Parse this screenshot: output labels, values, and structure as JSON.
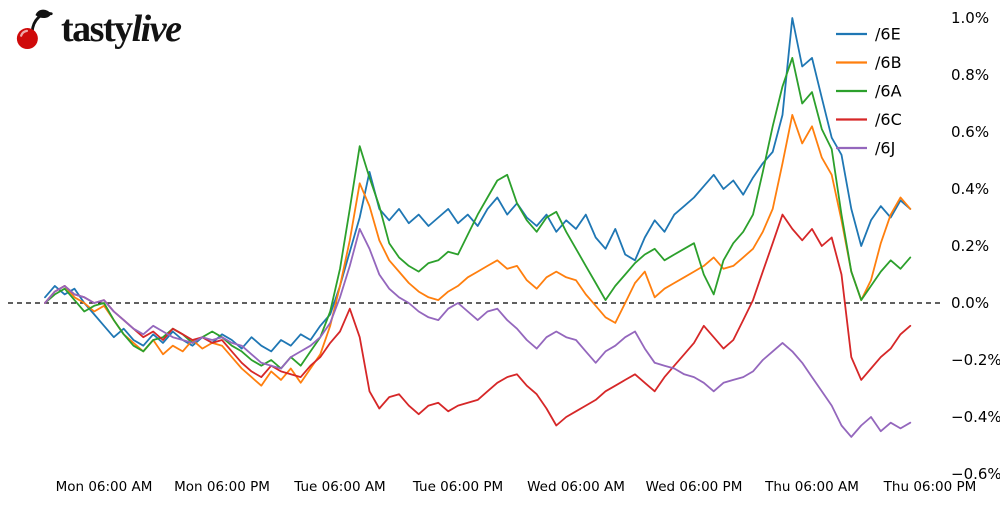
{
  "logo": {
    "brand_first": "tasty",
    "brand_second": "live",
    "cherry_color": "#cf0a0a"
  },
  "chart_data": {
    "type": "line",
    "title": "",
    "xlabel": "",
    "ylabel": "",
    "background": "#ffffff",
    "grid": false,
    "zero_line_dashed": true,
    "legend_position": "upper right",
    "x_unit": "hours since Mon 00:00",
    "x_start_hour": 0,
    "x_step_hours": 1,
    "x_axis_hours": [
      0,
      90
    ],
    "ylim": [
      -0.6,
      1.0
    ],
    "x_ticks": {
      "hours": [
        6,
        18,
        30,
        42,
        54,
        66,
        78,
        90
      ],
      "labels": [
        "Mon 06:00 AM",
        "Mon 06:00 PM",
        "Tue 06:00 AM",
        "Tue 06:00 PM",
        "Wed 06:00 AM",
        "Wed 06:00 PM",
        "Thu 06:00 AM",
        "Thu 06:00 PM"
      ]
    },
    "y_ticks": {
      "values": [
        1.0,
        0.8,
        0.6,
        0.4,
        0.2,
        0.0,
        -0.2,
        -0.4,
        -0.6
      ],
      "labels": [
        "1.0%",
        "0.8%",
        "0.6%",
        "0.4%",
        "0.2%",
        "0.0%",
        "−0.2%",
        "−0.4%",
        "−0.6%"
      ]
    },
    "series": [
      {
        "name": "/6E",
        "color": "#1f77b4",
        "values": [
          0.02,
          0.06,
          0.03,
          0.05,
          0.0,
          -0.04,
          -0.08,
          -0.12,
          -0.09,
          -0.13,
          -0.15,
          -0.11,
          -0.14,
          -0.1,
          -0.13,
          -0.15,
          -0.12,
          -0.14,
          -0.11,
          -0.13,
          -0.16,
          -0.12,
          -0.15,
          -0.17,
          -0.13,
          -0.15,
          -0.11,
          -0.13,
          -0.08,
          -0.04,
          0.06,
          0.18,
          0.3,
          0.46,
          0.33,
          0.29,
          0.33,
          0.28,
          0.31,
          0.27,
          0.3,
          0.33,
          0.28,
          0.31,
          0.27,
          0.33,
          0.37,
          0.31,
          0.35,
          0.3,
          0.27,
          0.31,
          0.25,
          0.29,
          0.26,
          0.31,
          0.23,
          0.19,
          0.26,
          0.17,
          0.15,
          0.23,
          0.29,
          0.25,
          0.31,
          0.34,
          0.37,
          0.41,
          0.45,
          0.4,
          0.43,
          0.38,
          0.44,
          0.49,
          0.53,
          0.66,
          1.0,
          0.83,
          0.86,
          0.72,
          0.58,
          0.52,
          0.33,
          0.2,
          0.29,
          0.34,
          0.3,
          0.36,
          0.33
        ]
      },
      {
        "name": "/6B",
        "color": "#ff7f0e",
        "values": [
          0.0,
          0.04,
          0.06,
          0.02,
          0.0,
          -0.03,
          -0.01,
          -0.06,
          -0.11,
          -0.14,
          -0.17,
          -0.13,
          -0.18,
          -0.15,
          -0.17,
          -0.13,
          -0.16,
          -0.14,
          -0.15,
          -0.19,
          -0.23,
          -0.26,
          -0.29,
          -0.24,
          -0.27,
          -0.23,
          -0.28,
          -0.23,
          -0.18,
          -0.08,
          0.06,
          0.22,
          0.42,
          0.34,
          0.22,
          0.15,
          0.11,
          0.07,
          0.04,
          0.02,
          0.01,
          0.04,
          0.06,
          0.09,
          0.11,
          0.13,
          0.15,
          0.12,
          0.13,
          0.08,
          0.05,
          0.09,
          0.11,
          0.09,
          0.08,
          0.03,
          -0.01,
          -0.05,
          -0.07,
          0.0,
          0.07,
          0.11,
          0.02,
          0.05,
          0.07,
          0.09,
          0.11,
          0.13,
          0.16,
          0.12,
          0.13,
          0.16,
          0.19,
          0.25,
          0.33,
          0.49,
          0.66,
          0.56,
          0.62,
          0.51,
          0.45,
          0.29,
          0.11,
          0.01,
          0.08,
          0.21,
          0.31,
          0.37,
          0.33
        ]
      },
      {
        "name": "/6A",
        "color": "#2ca02c",
        "values": [
          0.0,
          0.03,
          0.05,
          0.01,
          -0.03,
          -0.01,
          0.0,
          -0.06,
          -0.11,
          -0.15,
          -0.17,
          -0.13,
          -0.12,
          -0.09,
          -0.11,
          -0.14,
          -0.12,
          -0.1,
          -0.12,
          -0.15,
          -0.17,
          -0.2,
          -0.22,
          -0.2,
          -0.23,
          -0.19,
          -0.22,
          -0.17,
          -0.12,
          -0.03,
          0.12,
          0.33,
          0.55,
          0.44,
          0.34,
          0.21,
          0.16,
          0.13,
          0.11,
          0.14,
          0.15,
          0.18,
          0.17,
          0.24,
          0.31,
          0.37,
          0.43,
          0.45,
          0.35,
          0.29,
          0.25,
          0.3,
          0.32,
          0.25,
          0.19,
          0.13,
          0.07,
          0.01,
          0.06,
          0.1,
          0.14,
          0.17,
          0.19,
          0.15,
          0.17,
          0.19,
          0.21,
          0.1,
          0.03,
          0.15,
          0.21,
          0.25,
          0.31,
          0.46,
          0.62,
          0.76,
          0.86,
          0.7,
          0.74,
          0.61,
          0.54,
          0.31,
          0.11,
          0.01,
          0.06,
          0.11,
          0.15,
          0.12,
          0.16
        ]
      },
      {
        "name": "/6C",
        "color": "#d62728",
        "values": [
          0.0,
          0.04,
          0.06,
          0.03,
          0.02,
          0.0,
          0.01,
          -0.03,
          -0.06,
          -0.09,
          -0.12,
          -0.1,
          -0.13,
          -0.09,
          -0.11,
          -0.13,
          -0.12,
          -0.14,
          -0.13,
          -0.17,
          -0.21,
          -0.24,
          -0.26,
          -0.22,
          -0.24,
          -0.25,
          -0.26,
          -0.22,
          -0.19,
          -0.14,
          -0.1,
          -0.02,
          -0.12,
          -0.31,
          -0.37,
          -0.33,
          -0.32,
          -0.36,
          -0.39,
          -0.36,
          -0.35,
          -0.38,
          -0.36,
          -0.35,
          -0.34,
          -0.31,
          -0.28,
          -0.26,
          -0.25,
          -0.29,
          -0.32,
          -0.37,
          -0.43,
          -0.4,
          -0.38,
          -0.36,
          -0.34,
          -0.31,
          -0.29,
          -0.27,
          -0.25,
          -0.28,
          -0.31,
          -0.26,
          -0.22,
          -0.18,
          -0.14,
          -0.08,
          -0.12,
          -0.16,
          -0.13,
          -0.06,
          0.01,
          0.11,
          0.21,
          0.31,
          0.26,
          0.22,
          0.26,
          0.2,
          0.23,
          0.1,
          -0.19,
          -0.27,
          -0.23,
          -0.19,
          -0.16,
          -0.11,
          -0.08
        ]
      },
      {
        "name": "/6J",
        "color": "#9467bd",
        "values": [
          0.0,
          0.04,
          0.06,
          0.03,
          0.02,
          0.0,
          0.01,
          -0.03,
          -0.06,
          -0.09,
          -0.11,
          -0.08,
          -0.1,
          -0.12,
          -0.13,
          -0.14,
          -0.12,
          -0.13,
          -0.12,
          -0.14,
          -0.15,
          -0.18,
          -0.21,
          -0.22,
          -0.23,
          -0.19,
          -0.17,
          -0.15,
          -0.12,
          -0.07,
          0.02,
          0.13,
          0.26,
          0.19,
          0.1,
          0.05,
          0.02,
          0.0,
          -0.03,
          -0.05,
          -0.06,
          -0.02,
          0.0,
          -0.03,
          -0.06,
          -0.03,
          -0.02,
          -0.06,
          -0.09,
          -0.13,
          -0.16,
          -0.12,
          -0.1,
          -0.12,
          -0.13,
          -0.17,
          -0.21,
          -0.17,
          -0.15,
          -0.12,
          -0.1,
          -0.16,
          -0.21,
          -0.22,
          -0.23,
          -0.25,
          -0.26,
          -0.28,
          -0.31,
          -0.28,
          -0.27,
          -0.26,
          -0.24,
          -0.2,
          -0.17,
          -0.14,
          -0.17,
          -0.21,
          -0.26,
          -0.31,
          -0.36,
          -0.43,
          -0.47,
          -0.43,
          -0.4,
          -0.45,
          -0.42,
          -0.44,
          -0.42
        ]
      }
    ]
  }
}
